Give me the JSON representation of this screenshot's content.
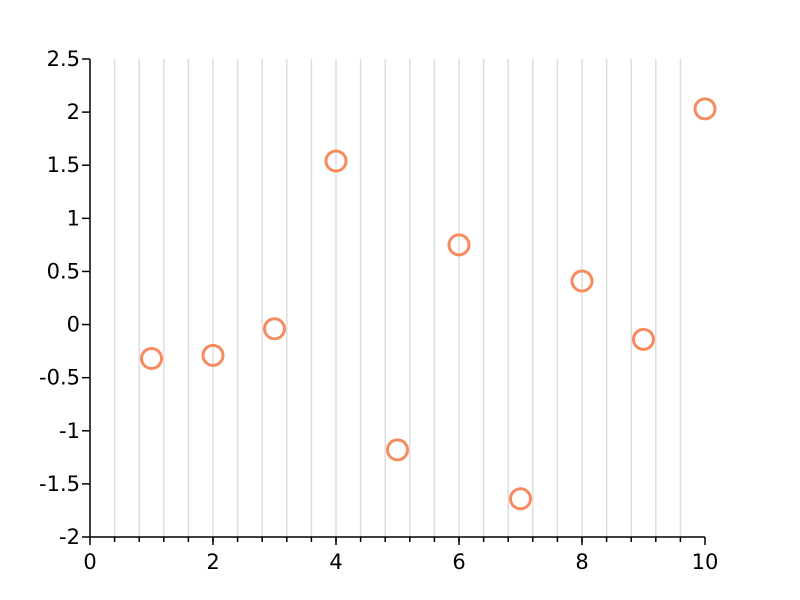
{
  "chart_data": {
    "type": "scatter",
    "title": "",
    "xlabel": "",
    "ylabel": "",
    "xlim": [
      0,
      10
    ],
    "ylim": [
      -2,
      2.5
    ],
    "x_ticks": [
      0,
      2,
      4,
      6,
      8,
      10
    ],
    "x_tick_labels": [
      "0",
      "2",
      "4",
      "6",
      "8",
      "10"
    ],
    "y_ticks": [
      -2,
      -1.5,
      -1,
      -0.5,
      0,
      0.5,
      1,
      1.5,
      2,
      2.5
    ],
    "y_tick_labels": [
      "-2",
      "-1.5",
      "-1",
      "-0.5",
      "0",
      "0.5",
      "1",
      "1.5",
      "2",
      "2.5"
    ],
    "x_minor_step": 0.4,
    "grid": "vertical-minor",
    "marker": "open-circle",
    "series": [
      {
        "color": "#f58b5f",
        "x": [
          1,
          2,
          3,
          4,
          5,
          6,
          7,
          8,
          9,
          10
        ],
        "y": [
          -0.32,
          -0.29,
          -0.04,
          1.54,
          -1.18,
          0.75,
          -1.64,
          0.41,
          -0.14,
          2.03
        ]
      }
    ]
  }
}
